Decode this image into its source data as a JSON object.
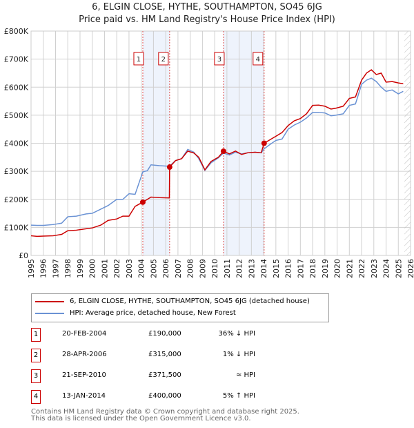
{
  "chart_data": {
    "type": "line",
    "title": "6, ELGIN CLOSE, HYTHE, SOUTHAMPTON, SO45 6JG",
    "subtitle": "Price paid vs. HM Land Registry's House Price Index (HPI)",
    "xlim": [
      1995,
      2026
    ],
    "ylim": [
      0,
      800000
    ],
    "x_ticks": [
      "1995",
      "1996",
      "1997",
      "1998",
      "1999",
      "2000",
      "2001",
      "2002",
      "2003",
      "2004",
      "2005",
      "2006",
      "2007",
      "2008",
      "2009",
      "2010",
      "2011",
      "2012",
      "2013",
      "2014",
      "2015",
      "2016",
      "2017",
      "2018",
      "2019",
      "2020",
      "2021",
      "2022",
      "2023",
      "2024",
      "2025",
      "2026"
    ],
    "y_ticks": [
      {
        "v": 0,
        "label": "£0"
      },
      {
        "v": 100000,
        "label": "£100K"
      },
      {
        "v": 200000,
        "label": "£200K"
      },
      {
        "v": 300000,
        "label": "£300K"
      },
      {
        "v": 400000,
        "label": "£400K"
      },
      {
        "v": 500000,
        "label": "£500K"
      },
      {
        "v": 600000,
        "label": "£600K"
      },
      {
        "v": 700000,
        "label": "£700K"
      },
      {
        "v": 800000,
        "label": "£800K"
      }
    ],
    "grid": true,
    "forecast_hatch_from": 2025.5,
    "series": [
      {
        "name": "6, ELGIN CLOSE, HYTHE, SOUTHAMPTON, SO45 6JG (detached house)",
        "color": "#cc0000",
        "x": [
          1995,
          1995.5,
          1996,
          1996.8,
          1997.5,
          1998,
          1998.7,
          1999.5,
          2000,
          2000.7,
          2001.3,
          2002,
          2002.5,
          2003,
          2003.5,
          2004.13,
          2004.5,
          2004.8,
          2005.5,
          2006.3,
          2006.32,
          2006.8,
          2007.3,
          2007.8,
          2008.3,
          2008.7,
          2009.2,
          2009.7,
          2010.3,
          2010.72,
          2011.2,
          2011.7,
          2012.2,
          2012.7,
          2013.3,
          2013.8,
          2014.04,
          2014.5,
          2015,
          2015.5,
          2016,
          2016.5,
          2017,
          2017.5,
          2018,
          2018.5,
          2019,
          2019.5,
          2019.9,
          2020.5,
          2021,
          2021.5,
          2022,
          2022.4,
          2022.8,
          2023.2,
          2023.6,
          2024,
          2024.5,
          2025,
          2025.4
        ],
        "y": [
          70,
          68,
          69,
          70,
          75,
          88,
          90,
          95,
          98,
          108,
          125,
          130,
          140,
          140,
          175,
          190,
          200,
          208,
          206,
          205,
          315,
          338,
          345,
          372,
          365,
          350,
          305,
          335,
          350,
          371.5,
          362,
          372,
          360,
          366,
          368,
          366,
          400,
          412,
          425,
          438,
          463,
          480,
          488,
          505,
          535,
          536,
          532,
          522,
          525,
          532,
          560,
          565,
          625,
          650,
          662,
          645,
          650,
          618,
          620,
          615,
          612
        ]
      },
      {
        "name": "HPI: Average price, detached house, New Forest",
        "color": "#6a92d4",
        "x": [
          1995,
          1995.5,
          1996,
          1996.8,
          1997.5,
          1998,
          1998.7,
          1999.5,
          2000,
          2000.7,
          2001.3,
          2002,
          2002.5,
          2003,
          2003.5,
          2004.13,
          2004.5,
          2004.8,
          2005.5,
          2006.3,
          2006.8,
          2007.3,
          2007.8,
          2008.3,
          2008.7,
          2009.2,
          2009.7,
          2010.3,
          2010.72,
          2011.2,
          2011.7,
          2012.2,
          2012.7,
          2013.3,
          2013.8,
          2014.04,
          2014.5,
          2015,
          2015.5,
          2016,
          2016.5,
          2017,
          2017.5,
          2018,
          2018.5,
          2019,
          2019.5,
          2019.9,
          2020.5,
          2021,
          2021.5,
          2022,
          2022.4,
          2022.8,
          2023.2,
          2023.6,
          2024,
          2024.5,
          2025,
          2025.4
        ],
        "y": [
          108,
          107,
          107,
          110,
          115,
          138,
          140,
          148,
          150,
          165,
          178,
          200,
          200,
          220,
          218,
          298,
          302,
          323,
          320,
          318,
          338,
          345,
          378,
          368,
          345,
          303,
          330,
          348,
          365,
          358,
          368,
          362,
          366,
          368,
          366,
          380,
          395,
          410,
          415,
          450,
          465,
          475,
          490,
          510,
          510,
          508,
          498,
          500,
          505,
          535,
          540,
          610,
          625,
          632,
          620,
          600,
          585,
          590,
          576,
          585
        ]
      }
    ],
    "sales": [
      {
        "num": "1",
        "x": 2004.13,
        "price": 190000,
        "date": "20-FEB-2004",
        "price_label": "£190,000",
        "hpi": "36% ↓ HPI"
      },
      {
        "num": "2",
        "x": 2006.32,
        "price": 315000,
        "date": "28-APR-2006",
        "price_label": "£315,000",
        "hpi": "1% ↓ HPI"
      },
      {
        "num": "3",
        "x": 2010.72,
        "price": 371500,
        "date": "21-SEP-2010",
        "price_label": "£371,500",
        "hpi": "≈ HPI"
      },
      {
        "num": "4",
        "x": 2014.04,
        "price": 400000,
        "date": "13-JAN-2014",
        "price_label": "£400,000",
        "hpi": "5% ↑ HPI"
      }
    ],
    "shaded_ranges": [
      [
        2004.13,
        2006.32
      ],
      [
        2010.72,
        2014.04
      ]
    ]
  },
  "header": {
    "line1": "6, ELGIN CLOSE, HYTHE, SOUTHAMPTON, SO45 6JG",
    "line2": "Price paid vs. HM Land Registry's House Price Index (HPI)"
  },
  "legend": {
    "red": "6, ELGIN CLOSE, HYTHE, SOUTHAMPTON, SO45 6JG (detached house)",
    "blue": "HPI: Average price, detached house, New Forest"
  },
  "footer": {
    "line1": "Contains HM Land Registry data © Crown copyright and database right 2025.",
    "line2": "This data is licensed under the Open Government Licence v3.0."
  }
}
